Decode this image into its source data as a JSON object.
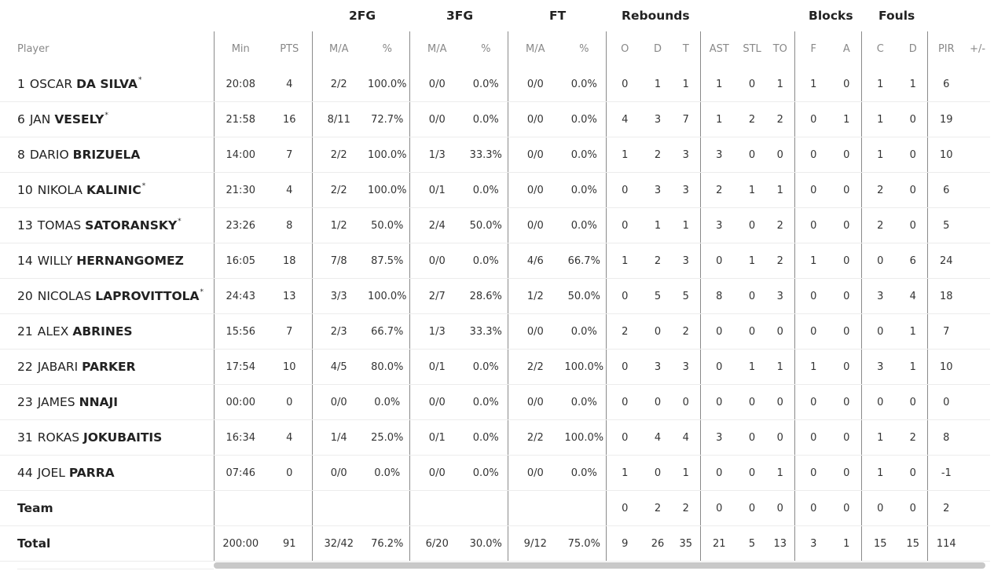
{
  "groups": {
    "fg2": "2FG",
    "fg3": "3FG",
    "ft": "FT",
    "rebounds": "Rebounds",
    "blocks": "Blocks",
    "fouls": "Fouls"
  },
  "headers": {
    "player": "Player",
    "min": "Min",
    "pts": "PTS",
    "fg2_ma": "M/A",
    "fg2_pct": "%",
    "fg3_ma": "M/A",
    "fg3_pct": "%",
    "ft_ma": "M/A",
    "ft_pct": "%",
    "reb_o": "O",
    "reb_d": "D",
    "reb_t": "T",
    "ast": "AST",
    "stl": "STL",
    "to": "TO",
    "blk_f": "F",
    "blk_a": "A",
    "foul_c": "C",
    "foul_d": "D",
    "pir": "PIR",
    "pm": "+/-"
  },
  "players": [
    {
      "num": "1",
      "first": "OSCAR",
      "last": "DA SILVA",
      "star": "*",
      "min": "20:08",
      "pts": "4",
      "fg2_ma": "2/2",
      "fg2_pct": "100.0%",
      "fg3_ma": "0/0",
      "fg3_pct": "0.0%",
      "ft_ma": "0/0",
      "ft_pct": "0.0%",
      "o": "0",
      "d": "1",
      "t": "1",
      "ast": "1",
      "stl": "0",
      "to": "1",
      "bf": "1",
      "ba": "0",
      "fc": "1",
      "fd": "1",
      "pir": "6",
      "pm": ""
    },
    {
      "num": "6",
      "first": "JAN",
      "last": "VESELY",
      "star": "*",
      "min": "21:58",
      "pts": "16",
      "fg2_ma": "8/11",
      "fg2_pct": "72.7%",
      "fg3_ma": "0/0",
      "fg3_pct": "0.0%",
      "ft_ma": "0/0",
      "ft_pct": "0.0%",
      "o": "4",
      "d": "3",
      "t": "7",
      "ast": "1",
      "stl": "2",
      "to": "2",
      "bf": "0",
      "ba": "1",
      "fc": "1",
      "fd": "0",
      "pir": "19",
      "pm": ""
    },
    {
      "num": "8",
      "first": "DARIO",
      "last": "BRIZUELA",
      "star": "",
      "min": "14:00",
      "pts": "7",
      "fg2_ma": "2/2",
      "fg2_pct": "100.0%",
      "fg3_ma": "1/3",
      "fg3_pct": "33.3%",
      "ft_ma": "0/0",
      "ft_pct": "0.0%",
      "o": "1",
      "d": "2",
      "t": "3",
      "ast": "3",
      "stl": "0",
      "to": "0",
      "bf": "0",
      "ba": "0",
      "fc": "1",
      "fd": "0",
      "pir": "10",
      "pm": ""
    },
    {
      "num": "10",
      "first": "NIKOLA",
      "last": "KALINIC",
      "star": "*",
      "min": "21:30",
      "pts": "4",
      "fg2_ma": "2/2",
      "fg2_pct": "100.0%",
      "fg3_ma": "0/1",
      "fg3_pct": "0.0%",
      "ft_ma": "0/0",
      "ft_pct": "0.0%",
      "o": "0",
      "d": "3",
      "t": "3",
      "ast": "2",
      "stl": "1",
      "to": "1",
      "bf": "0",
      "ba": "0",
      "fc": "2",
      "fd": "0",
      "pir": "6",
      "pm": ""
    },
    {
      "num": "13",
      "first": "TOMAS",
      "last": "SATORANSKY",
      "star": "*",
      "min": "23:26",
      "pts": "8",
      "fg2_ma": "1/2",
      "fg2_pct": "50.0%",
      "fg3_ma": "2/4",
      "fg3_pct": "50.0%",
      "ft_ma": "0/0",
      "ft_pct": "0.0%",
      "o": "0",
      "d": "1",
      "t": "1",
      "ast": "3",
      "stl": "0",
      "to": "2",
      "bf": "0",
      "ba": "0",
      "fc": "2",
      "fd": "0",
      "pir": "5",
      "pm": ""
    },
    {
      "num": "14",
      "first": "WILLY",
      "last": "HERNANGOMEZ",
      "star": "",
      "min": "16:05",
      "pts": "18",
      "fg2_ma": "7/8",
      "fg2_pct": "87.5%",
      "fg3_ma": "0/0",
      "fg3_pct": "0.0%",
      "ft_ma": "4/6",
      "ft_pct": "66.7%",
      "o": "1",
      "d": "2",
      "t": "3",
      "ast": "0",
      "stl": "1",
      "to": "2",
      "bf": "1",
      "ba": "0",
      "fc": "0",
      "fd": "6",
      "pir": "24",
      "pm": ""
    },
    {
      "num": "20",
      "first": "NICOLAS",
      "last": "LAPROVITTOLA",
      "star": "*",
      "min": "24:43",
      "pts": "13",
      "fg2_ma": "3/3",
      "fg2_pct": "100.0%",
      "fg3_ma": "2/7",
      "fg3_pct": "28.6%",
      "ft_ma": "1/2",
      "ft_pct": "50.0%",
      "o": "0",
      "d": "5",
      "t": "5",
      "ast": "8",
      "stl": "0",
      "to": "3",
      "bf": "0",
      "ba": "0",
      "fc": "3",
      "fd": "4",
      "pir": "18",
      "pm": ""
    },
    {
      "num": "21",
      "first": "ALEX",
      "last": "ABRINES",
      "star": "",
      "min": "15:56",
      "pts": "7",
      "fg2_ma": "2/3",
      "fg2_pct": "66.7%",
      "fg3_ma": "1/3",
      "fg3_pct": "33.3%",
      "ft_ma": "0/0",
      "ft_pct": "0.0%",
      "o": "2",
      "d": "0",
      "t": "2",
      "ast": "0",
      "stl": "0",
      "to": "0",
      "bf": "0",
      "ba": "0",
      "fc": "0",
      "fd": "1",
      "pir": "7",
      "pm": ""
    },
    {
      "num": "22",
      "first": "JABARI",
      "last": "PARKER",
      "star": "",
      "min": "17:54",
      "pts": "10",
      "fg2_ma": "4/5",
      "fg2_pct": "80.0%",
      "fg3_ma": "0/1",
      "fg3_pct": "0.0%",
      "ft_ma": "2/2",
      "ft_pct": "100.0%",
      "o": "0",
      "d": "3",
      "t": "3",
      "ast": "0",
      "stl": "1",
      "to": "1",
      "bf": "1",
      "ba": "0",
      "fc": "3",
      "fd": "1",
      "pir": "10",
      "pm": ""
    },
    {
      "num": "23",
      "first": "JAMES",
      "last": "NNAJI",
      "star": "",
      "min": "00:00",
      "pts": "0",
      "fg2_ma": "0/0",
      "fg2_pct": "0.0%",
      "fg3_ma": "0/0",
      "fg3_pct": "0.0%",
      "ft_ma": "0/0",
      "ft_pct": "0.0%",
      "o": "0",
      "d": "0",
      "t": "0",
      "ast": "0",
      "stl": "0",
      "to": "0",
      "bf": "0",
      "ba": "0",
      "fc": "0",
      "fd": "0",
      "pir": "0",
      "pm": ""
    },
    {
      "num": "31",
      "first": "ROKAS",
      "last": "JOKUBAITIS",
      "star": "",
      "min": "16:34",
      "pts": "4",
      "fg2_ma": "1/4",
      "fg2_pct": "25.0%",
      "fg3_ma": "0/1",
      "fg3_pct": "0.0%",
      "ft_ma": "2/2",
      "ft_pct": "100.0%",
      "o": "0",
      "d": "4",
      "t": "4",
      "ast": "3",
      "stl": "0",
      "to": "0",
      "bf": "0",
      "ba": "0",
      "fc": "1",
      "fd": "2",
      "pir": "8",
      "pm": ""
    },
    {
      "num": "44",
      "first": "JOEL",
      "last": "PARRA",
      "star": "",
      "min": "07:46",
      "pts": "0",
      "fg2_ma": "0/0",
      "fg2_pct": "0.0%",
      "fg3_ma": "0/0",
      "fg3_pct": "0.0%",
      "ft_ma": "0/0",
      "ft_pct": "0.0%",
      "o": "1",
      "d": "0",
      "t": "1",
      "ast": "0",
      "stl": "0",
      "to": "1",
      "bf": "0",
      "ba": "0",
      "fc": "1",
      "fd": "0",
      "pir": "-1",
      "pm": ""
    }
  ],
  "team": {
    "label": "Team",
    "min": "",
    "pts": "",
    "fg2_ma": "",
    "fg2_pct": "",
    "fg3_ma": "",
    "fg3_pct": "",
    "ft_ma": "",
    "ft_pct": "",
    "o": "0",
    "d": "2",
    "t": "2",
    "ast": "0",
    "stl": "0",
    "to": "0",
    "bf": "0",
    "ba": "0",
    "fc": "0",
    "fd": "0",
    "pir": "2",
    "pm": ""
  },
  "total": {
    "label": "Total",
    "min": "200:00",
    "pts": "91",
    "fg2_ma": "32/42",
    "fg2_pct": "76.2%",
    "fg3_ma": "6/20",
    "fg3_pct": "30.0%",
    "ft_ma": "9/12",
    "ft_pct": "75.0%",
    "o": "9",
    "d": "26",
    "t": "35",
    "ast": "21",
    "stl": "5",
    "to": "13",
    "bf": "3",
    "ba": "1",
    "fc": "15",
    "fd": "15",
    "pir": "114",
    "pm": ""
  }
}
